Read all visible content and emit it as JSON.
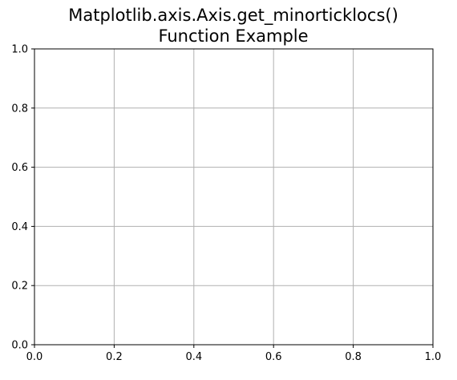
{
  "chart_data": {
    "type": "line",
    "title_lines": [
      "Matplotlib.axis.Axis.get_minorticklocs()",
      "Function Example"
    ],
    "xlabel": "",
    "ylabel": "",
    "xlim": [
      0.0,
      1.0
    ],
    "ylim": [
      0.0,
      1.0
    ],
    "x_ticks": [
      0.0,
      0.2,
      0.4,
      0.6,
      0.8,
      1.0
    ],
    "y_ticks": [
      0.0,
      0.2,
      0.4,
      0.6,
      0.8,
      1.0
    ],
    "x_tick_labels": [
      "0.0",
      "0.2",
      "0.4",
      "0.6",
      "0.8",
      "1.0"
    ],
    "y_tick_labels": [
      "0.0",
      "0.2",
      "0.4",
      "0.6",
      "0.8",
      "1.0"
    ],
    "grid": true,
    "series": []
  },
  "colors": {
    "grid": "#b0b0b0",
    "frame": "#000000",
    "background": "#ffffff"
  }
}
